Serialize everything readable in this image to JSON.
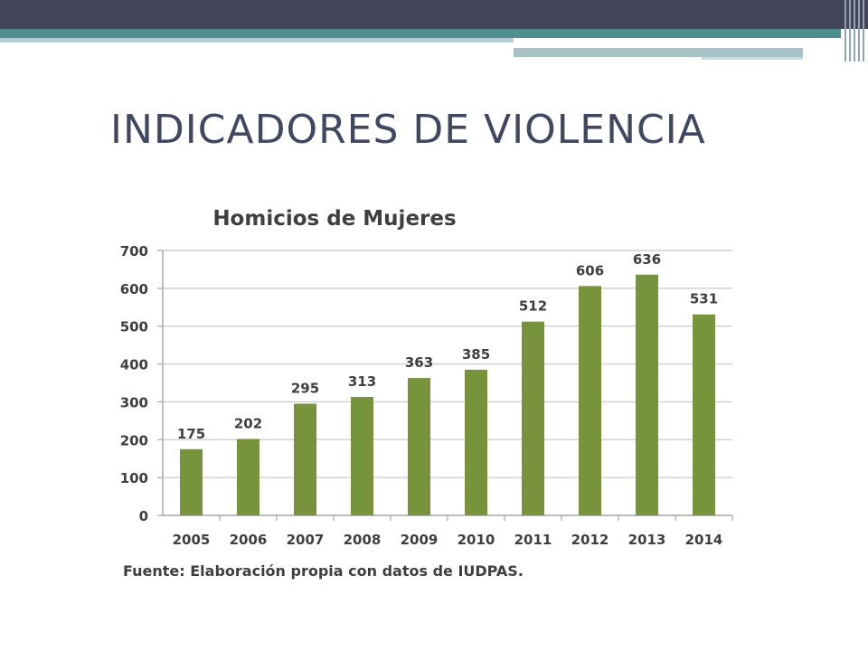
{
  "slide": {
    "title": "INDICADORES DE VIOLENCIA",
    "source": "Fuente: Elaboración propia con datos de IUDPAS."
  },
  "chart_data": {
    "type": "bar",
    "title": "Homicios de Mujeres",
    "xlabel": "",
    "ylabel": "",
    "categories": [
      "2005",
      "2006",
      "2007",
      "2008",
      "2009",
      "2010",
      "2011",
      "2012",
      "2013",
      "2014"
    ],
    "values": [
      175,
      202,
      295,
      313,
      363,
      385,
      512,
      606,
      636,
      531
    ],
    "data_labels": [
      "175",
      "202",
      "295",
      "313",
      "363",
      "385",
      "512",
      "606",
      "636",
      "531"
    ],
    "ylim": [
      0,
      700
    ],
    "yticks": [
      0,
      100,
      200,
      300,
      400,
      500,
      600,
      700
    ],
    "grid": true,
    "legend": false,
    "bar_color": "#77933c"
  },
  "colors": {
    "header_bar": "#434558",
    "accent_teal": "#4f8e8e",
    "title_text": "#414760"
  }
}
